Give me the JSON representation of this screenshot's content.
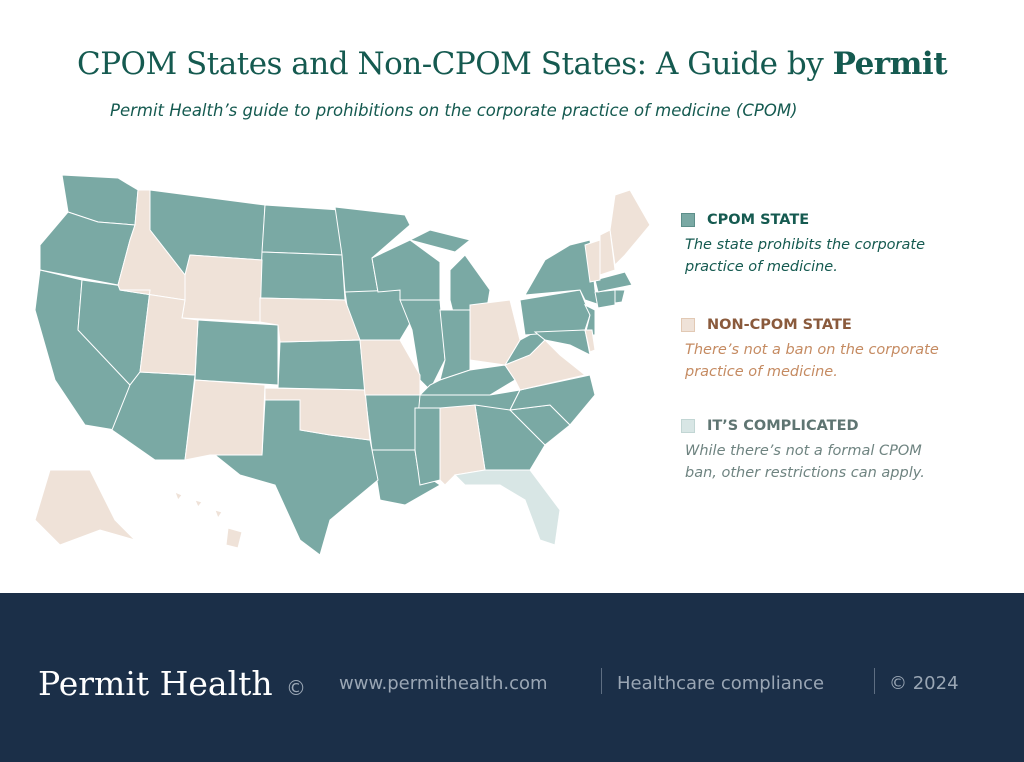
{
  "header": {
    "title_prefix": "CPOM States and Non-CPOM States: A Guide by ",
    "title_brand": "Permit",
    "subtitle": "Permit Health’s guide to prohibitions on the corporate practice of medicine (CPOM)"
  },
  "colors": {
    "cpom": "#7aa9a4",
    "non_cpom": "#efe2d8",
    "complicated": "#d8e6e5",
    "title": "#155a50",
    "footer": "#1b2f48"
  },
  "legend": [
    {
      "key": "cpom",
      "label": "CPOM STATE",
      "desc1": "The state prohibits the corporate",
      "desc2": "practice of medicine.",
      "text_color": "#155a50",
      "desc_color": "#155a50"
    },
    {
      "key": "non_cpom",
      "label": "NON-CPOM STATE",
      "desc1": "There’s not a ban on the corporate",
      "desc2": "practice of medicine.",
      "text_color": "#8a5a3c",
      "desc_color": "#c58b62"
    },
    {
      "key": "complicated",
      "label": "IT’S COMPLICATED",
      "desc1": "While there’s not a formal CPOM",
      "desc2": "ban, other restrictions can apply.",
      "text_color": "#5f7572",
      "desc_color": "#6f8481"
    }
  ],
  "states": {
    "WA": "cpom",
    "OR": "cpom",
    "CA": "cpom",
    "NV": "cpom",
    "AZ": "cpom",
    "MT": "cpom",
    "ND": "cpom",
    "SD": "cpom",
    "MN": "cpom",
    "IA": "cpom",
    "WI": "cpom",
    "MI": "cpom",
    "MI2": "cpom",
    "IL": "cpom",
    "IN": "cpom",
    "KY": "cpom",
    "TN": "cpom",
    "AR": "cpom",
    "LA": "cpom",
    "MS": "cpom",
    "TX": "cpom",
    "CO": "cpom",
    "KS": "cpom",
    "GA": "cpom",
    "SC": "cpom",
    "NC": "cpom",
    "WV": "cpom",
    "PA": "cpom",
    "NY": "cpom",
    "NJ": "cpom",
    "MD": "cpom",
    "CT": "cpom",
    "MA": "cpom",
    "RI": "cpom",
    "ID": "non_cpom",
    "WY": "non_cpom",
    "UT": "non_cpom",
    "NM": "non_cpom",
    "NE": "non_cpom",
    "OK": "non_cpom",
    "MO": "non_cpom",
    "OH": "non_cpom",
    "AL": "non_cpom",
    "VA": "non_cpom",
    "ME": "non_cpom",
    "NH": "non_cpom",
    "VT": "non_cpom",
    "DE": "non_cpom",
    "AK": "non_cpom",
    "HI": "non_cpom",
    "FL": "complicated"
  },
  "footer": {
    "brand": "Permit Health",
    "brand_mark": "©",
    "url": "www.permithealth.com",
    "tagline": "Healthcare compliance",
    "copyright": "© 2024"
  }
}
